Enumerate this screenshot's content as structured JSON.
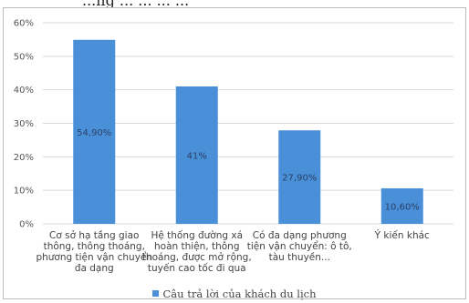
{
  "header_fragment": "...ng ... ... ... ...",
  "chart_data": {
    "type": "bar",
    "categories": [
      [
        "Cơ sở hạ tầng giao",
        "thông, thông thoáng,",
        "phương tiện vận chuyển",
        "đa dạng"
      ],
      [
        "Hệ thống đường xá",
        "hoàn thiện, thông",
        "thoáng, được mở rộng,",
        "tuyến cao tốc đi qua"
      ],
      [
        "Có đa dạng phương",
        "tiện vận chuyển: ô tô,",
        "tàu thuyền..."
      ],
      [
        "Ý kiến khác"
      ]
    ],
    "series": [
      {
        "name": "Câu trả lời của khách du lịch",
        "values": [
          54.9,
          41,
          27.9,
          10.6
        ],
        "labels": [
          "54,90%",
          "41%",
          "27,90%",
          "10,60%"
        ]
      }
    ],
    "yticks": [
      "0%",
      "10%",
      "20%",
      "30%",
      "40%",
      "50%",
      "60%"
    ],
    "ylim": [
      0,
      60
    ],
    "grid": true,
    "legend_position": "bottom",
    "colors": {
      "bar": "#4a90d9",
      "grid": "#d9d9d9",
      "label": "#2a3f66"
    }
  }
}
